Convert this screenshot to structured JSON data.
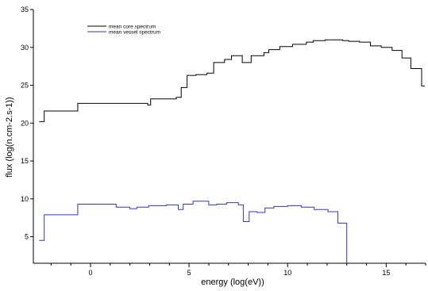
{
  "chart_data": {
    "type": "line",
    "step": true,
    "title": "",
    "xlabel": "energy (log(eV))",
    "ylabel": "flux (log(n.cm-2.s-1))",
    "xlim": [
      -2.9,
      17.0
    ],
    "ylim": [
      1.5,
      35
    ],
    "xticks": [
      0,
      5,
      10,
      15
    ],
    "yticks": [
      5,
      10,
      15,
      20,
      25,
      30,
      35
    ],
    "xtick_labels": [
      "0",
      "5",
      "10",
      "15"
    ],
    "ytick_labels": [
      "5",
      "10",
      "15",
      "20",
      "25",
      "30",
      "35"
    ],
    "grid": false,
    "legend_position": "top-left",
    "series": [
      {
        "name": "mean core spectrum",
        "color": "#000000",
        "x": [
          -2.6,
          -2.35,
          -0.65,
          2.9,
          3.05,
          4.35,
          4.6,
          4.9,
          5.35,
          5.9,
          6.25,
          6.8,
          7.15,
          7.7,
          8.15,
          8.8,
          9.05,
          9.6,
          10.25,
          10.95,
          11.3,
          11.9,
          12.8,
          13.1,
          13.65,
          14.2,
          14.75,
          15.3,
          15.8,
          16.25,
          16.8
        ],
        "y": [
          20.2,
          21.6,
          22.6,
          22.4,
          23.2,
          23.4,
          24.7,
          26.3,
          26.4,
          26.6,
          28.0,
          28.4,
          28.9,
          28.0,
          28.9,
          29.3,
          29.7,
          30.1,
          30.4,
          30.7,
          30.9,
          31.0,
          30.9,
          30.8,
          30.7,
          30.2,
          30.0,
          29.6,
          28.6,
          27.2,
          24.9
        ]
      },
      {
        "name": "mean vessel spectrum",
        "color": "#3333cc",
        "x": [
          -2.6,
          -2.35,
          -0.65,
          1.3,
          2.0,
          2.35,
          2.95,
          3.85,
          4.45,
          4.7,
          5.2,
          6.0,
          6.4,
          6.9,
          7.5,
          7.75,
          8.05,
          8.45,
          8.85,
          9.3,
          10.0,
          10.7,
          11.35,
          12.05,
          12.55,
          13.0
        ],
        "y": [
          4.5,
          7.9,
          9.3,
          8.9,
          8.7,
          8.9,
          9.1,
          9.2,
          8.6,
          9.3,
          9.7,
          9.2,
          9.3,
          9.5,
          9.2,
          7.0,
          8.3,
          8.2,
          8.8,
          9.0,
          9.1,
          8.9,
          8.6,
          8.3,
          6.8,
          5.4
        ]
      }
    ]
  }
}
